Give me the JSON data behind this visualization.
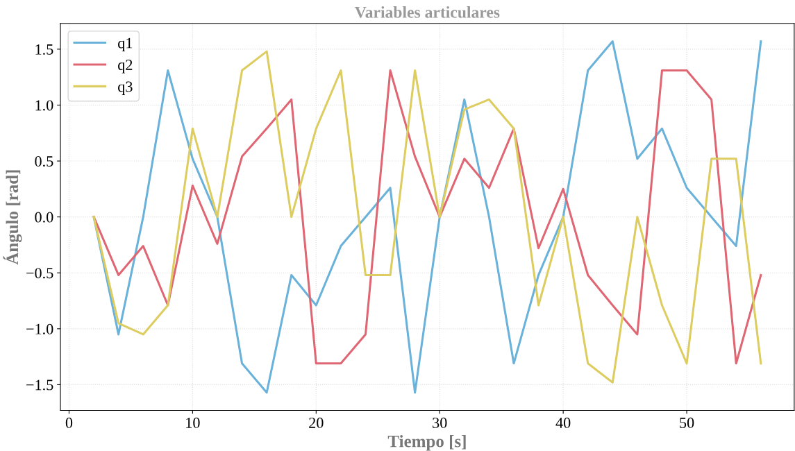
{
  "chart_data": {
    "type": "line",
    "title": "Variables articulares",
    "xlabel": "Tiempo [s]",
    "ylabel": "Ángulo [rad]",
    "x": [
      2,
      4,
      6,
      8,
      10,
      12,
      14,
      16,
      18,
      20,
      22,
      24,
      26,
      28,
      30,
      32,
      34,
      36,
      38,
      40,
      42,
      44,
      46,
      48,
      50,
      52,
      54,
      56
    ],
    "series": [
      {
        "name": "q1",
        "color": "#6ab2d9",
        "values": [
          0,
          -1.05,
          0,
          1.31,
          0.52,
          0,
          -1.31,
          -1.57,
          -0.52,
          -0.79,
          -0.26,
          0,
          0.26,
          -1.57,
          0,
          1.05,
          0,
          -1.31,
          -0.52,
          0,
          1.31,
          1.57,
          0.52,
          0.79,
          0.26,
          0,
          -0.26,
          1.57
        ]
      },
      {
        "name": "q2",
        "color": "#df6673",
        "values": [
          0,
          -0.52,
          -0.26,
          -0.79,
          0.28,
          -0.24,
          0.54,
          0.79,
          1.05,
          -1.31,
          -1.31,
          -1.05,
          1.31,
          0.54,
          0,
          0.52,
          0.26,
          0.79,
          -0.28,
          0.25,
          -0.52,
          -0.79,
          -1.05,
          1.31,
          1.31,
          1.05,
          -1.31,
          -0.52
        ]
      },
      {
        "name": "q3",
        "color": "#ddcd61",
        "values": [
          0,
          -0.95,
          -1.05,
          -0.79,
          0.79,
          0,
          1.31,
          1.48,
          0,
          0.79,
          1.31,
          -0.52,
          -0.52,
          1.31,
          0,
          0.96,
          1.05,
          0.79,
          -0.79,
          0,
          -1.31,
          -1.48,
          0,
          -0.79,
          -1.31,
          0.52,
          0.52,
          -1.31
        ]
      }
    ],
    "xlim": [
      -0.7,
      58.7
    ],
    "ylim": [
      -1.73,
      1.73
    ],
    "xticks": [
      0,
      10,
      20,
      30,
      40,
      50
    ],
    "yticks": [
      {
        "value": -1.5,
        "label": "−1.5"
      },
      {
        "value": -1.0,
        "label": "−1.0"
      },
      {
        "value": -0.5,
        "label": "−0.5"
      },
      {
        "value": 0,
        "label": "0.0"
      },
      {
        "value": 0.5,
        "label": "0.5"
      },
      {
        "value": 1.0,
        "label": "1.0"
      },
      {
        "value": 1.5,
        "label": "1.5"
      }
    ],
    "grid": true,
    "legend": "top left",
    "line_style": "solid"
  }
}
